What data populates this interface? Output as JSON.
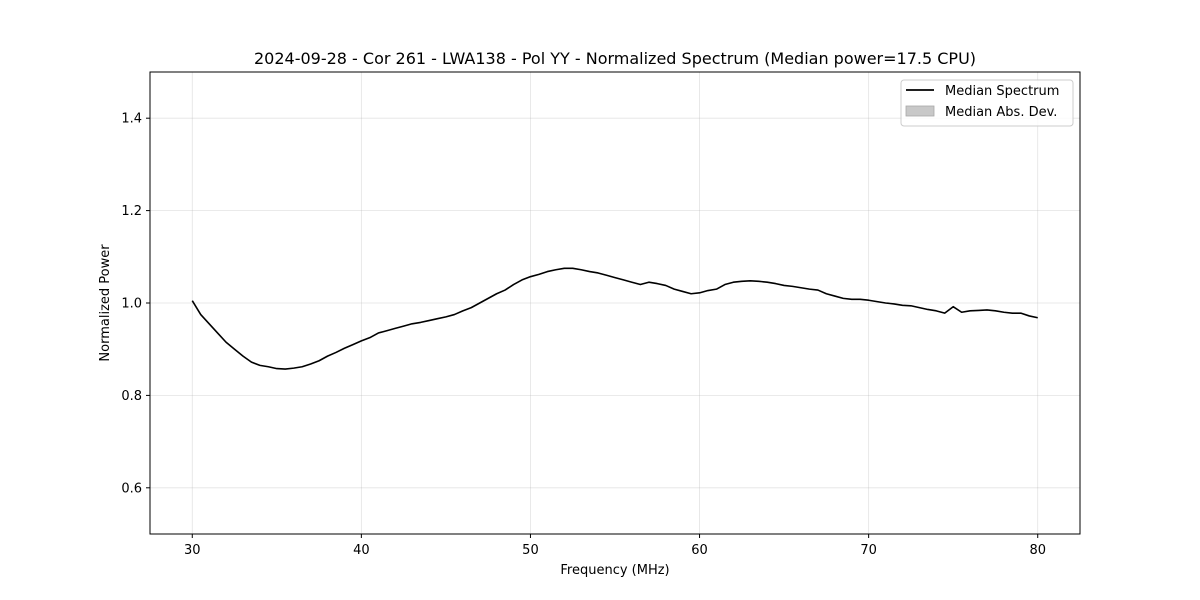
{
  "chart_data": {
    "type": "line",
    "title": "2024-09-28 - Cor 261 - LWA138 - Pol YY - Normalized Spectrum (Median power=17.5 CPU)",
    "xlabel": "Frequency (MHz)",
    "ylabel": "Normalized Power",
    "xlim": [
      27.5,
      82.5
    ],
    "ylim": [
      0.5,
      1.5
    ],
    "xticks": [
      30,
      40,
      50,
      60,
      70,
      80
    ],
    "xtick_labels": [
      "30",
      "40",
      "50",
      "60",
      "70",
      "80"
    ],
    "yticks": [
      0.6,
      0.8,
      1.0,
      1.2,
      1.4
    ],
    "ytick_labels": [
      "0.6",
      "0.8",
      "1.0",
      "1.2",
      "1.4"
    ],
    "grid": true,
    "legend_position": "top-right",
    "series": [
      {
        "name": "Median Spectrum",
        "color": "#000000",
        "x": [
          30,
          30.5,
          31,
          31.5,
          32,
          32.5,
          33,
          33.5,
          34,
          34.5,
          35,
          35.5,
          36,
          36.5,
          37,
          37.5,
          38,
          38.5,
          39,
          39.5,
          40,
          40.5,
          41,
          41.5,
          42,
          42.5,
          43,
          43.5,
          44,
          44.5,
          45,
          45.5,
          46,
          46.5,
          47,
          47.5,
          48,
          48.5,
          49,
          49.5,
          50,
          50.5,
          51,
          51.5,
          52,
          52.5,
          53,
          53.5,
          54,
          54.5,
          55,
          55.5,
          56,
          56.5,
          57,
          57.5,
          58,
          58.5,
          59,
          59.5,
          60,
          60.5,
          61,
          61.5,
          62,
          62.5,
          63,
          63.5,
          64,
          64.5,
          65,
          65.5,
          66,
          66.5,
          67,
          67.5,
          68,
          68.5,
          69,
          69.5,
          70,
          70.5,
          71,
          71.5,
          72,
          72.5,
          73,
          73.5,
          74,
          74.5,
          75,
          75.5,
          76,
          76.5,
          77,
          77.5,
          78,
          78.5,
          79,
          79.5,
          80
        ],
        "values": [
          1.005,
          0.975,
          0.955,
          0.935,
          0.915,
          0.9,
          0.885,
          0.872,
          0.865,
          0.862,
          0.858,
          0.857,
          0.859,
          0.862,
          0.868,
          0.875,
          0.885,
          0.893,
          0.902,
          0.91,
          0.918,
          0.925,
          0.935,
          0.94,
          0.945,
          0.95,
          0.955,
          0.958,
          0.962,
          0.966,
          0.97,
          0.975,
          0.983,
          0.99,
          1.0,
          1.01,
          1.02,
          1.028,
          1.04,
          1.05,
          1.057,
          1.062,
          1.068,
          1.072,
          1.075,
          1.075,
          1.072,
          1.068,
          1.065,
          1.06,
          1.055,
          1.05,
          1.045,
          1.04,
          1.045,
          1.042,
          1.038,
          1.03,
          1.025,
          1.02,
          1.022,
          1.027,
          1.03,
          1.04,
          1.045,
          1.047,
          1.048,
          1.047,
          1.045,
          1.042,
          1.038,
          1.036,
          1.033,
          1.03,
          1.028,
          1.02,
          1.015,
          1.01,
          1.008,
          1.008,
          1.006,
          1.003,
          1.0,
          0.998,
          0.995,
          0.994,
          0.99,
          0.986,
          0.983,
          0.978,
          0.992,
          0.98,
          0.983,
          0.984,
          0.985,
          0.983,
          0.98,
          0.978,
          0.978,
          0.972,
          0.968
        ]
      },
      {
        "name": "Median Abs. Dev.",
        "color": "#c8c8c8",
        "type": "area"
      }
    ]
  }
}
